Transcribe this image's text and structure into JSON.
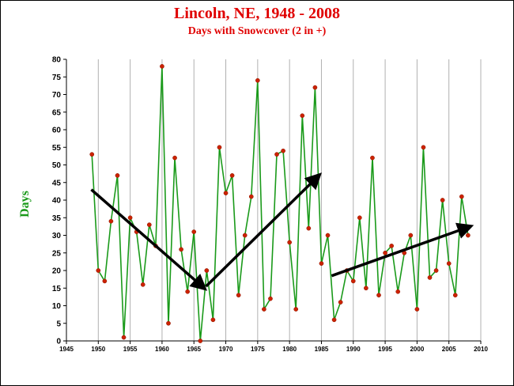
{
  "chart_data": {
    "type": "line",
    "title": "Lincoln, NE, 1948 - 2008",
    "subtitle": "Days with Snowcover (2 in +)",
    "xlabel": "",
    "ylabel": "Days",
    "xlim": [
      1945,
      2010
    ],
    "ylim": [
      0,
      80
    ],
    "x_ticks": [
      1945,
      1950,
      1955,
      1960,
      1965,
      1970,
      1975,
      1980,
      1985,
      1990,
      1995,
      2000,
      2005,
      2010
    ],
    "y_ticks": [
      0,
      5,
      10,
      15,
      20,
      25,
      30,
      35,
      40,
      45,
      50,
      55,
      60,
      65,
      70,
      75,
      80
    ],
    "grid": "vertical",
    "line_color": "#1a9a1a",
    "marker_color": "#cc2200",
    "grid_color": "#b0b0b0",
    "series": [
      {
        "x": [
          1949,
          1950,
          1951,
          1952,
          1953,
          1954,
          1955,
          1956,
          1957,
          1958,
          1959,
          1960,
          1961,
          1962,
          1963,
          1964,
          1965,
          1966,
          1967,
          1968,
          1969,
          1970,
          1971,
          1972,
          1973,
          1974,
          1975,
          1976,
          1977,
          1978,
          1979,
          1980,
          1981,
          1982,
          1983,
          1984,
          1985,
          1986,
          1987,
          1988,
          1989,
          1990,
          1991,
          1992,
          1993,
          1994,
          1995,
          1996,
          1997,
          1998,
          1999,
          2000,
          2001,
          2002,
          2003,
          2004,
          2005,
          2006,
          2007,
          2008
        ],
        "y": [
          53,
          20,
          17,
          34,
          47,
          1,
          35,
          31,
          16,
          33,
          27,
          78,
          5,
          52,
          26,
          14,
          31,
          0,
          20,
          6,
          55,
          42,
          47,
          13,
          30,
          41,
          74,
          9,
          12,
          53,
          54,
          28,
          9,
          64,
          32,
          72,
          22,
          30,
          6,
          11,
          20,
          17,
          35,
          15,
          52,
          13,
          25,
          27,
          14,
          25,
          30,
          9,
          55,
          18,
          20,
          40,
          22,
          13,
          41,
          30
        ]
      }
    ],
    "trend_arrows": [
      {
        "from": [
          1948.9,
          43
        ],
        "to": [
          1966.6,
          15
        ]
      },
      {
        "from": [
          1966.9,
          15.5
        ],
        "to": [
          1984.6,
          47
        ]
      },
      {
        "from": [
          1986.6,
          18.5
        ],
        "to": [
          2008.3,
          32.5
        ]
      }
    ]
  }
}
